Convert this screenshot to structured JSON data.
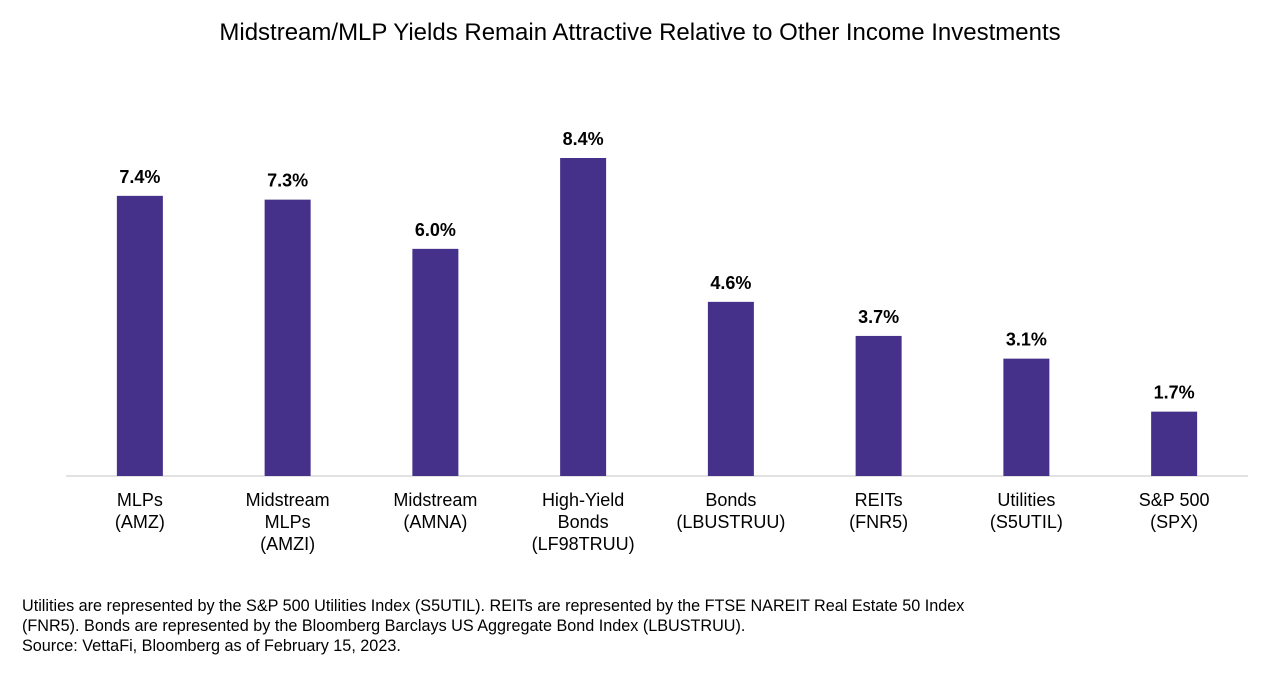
{
  "chart_data": {
    "type": "bar",
    "title": "Midstream/MLP Yields Remain Attractive Relative to Other Income Investments",
    "xlabel": "",
    "ylabel": "",
    "ylim": [
      0,
      8.4
    ],
    "grid": false,
    "categories": [
      [
        "MLPs",
        "(AMZ)"
      ],
      [
        "Midstream",
        "MLPs",
        "(AMZI)"
      ],
      [
        "Midstream",
        "(AMNA)"
      ],
      [
        "High-Yield",
        "Bonds",
        "(LF98TRUU)"
      ],
      [
        "Bonds",
        "(LBUSTRUU)"
      ],
      [
        "REITs",
        "(FNR5)"
      ],
      [
        "Utilities",
        "(S5UTIL)"
      ],
      [
        "S&P 500",
        "(SPX)"
      ]
    ],
    "values": [
      7.4,
      7.3,
      6.0,
      8.4,
      4.6,
      3.7,
      3.1,
      1.7
    ],
    "data_labels": [
      "7.4%",
      "7.3%",
      "6.0%",
      "8.4%",
      "4.6%",
      "3.7%",
      "3.1%",
      "1.7%"
    ]
  },
  "footnote": {
    "lines": [
      "Utilities are represented by the S&P 500 Utilities Index (S5UTIL). REITs are represented by the FTSE NAREIT Real Estate 50 Index",
      "(FNR5). Bonds are represented by the Bloomberg Barclays US Aggregate Bond Index (LBUSTRUU).",
      "Source: VettaFi, Bloomberg as of February 15, 2023."
    ]
  },
  "colors": {
    "bar": "#45308A",
    "axis": "#D9D9D9",
    "text": "#000000"
  }
}
